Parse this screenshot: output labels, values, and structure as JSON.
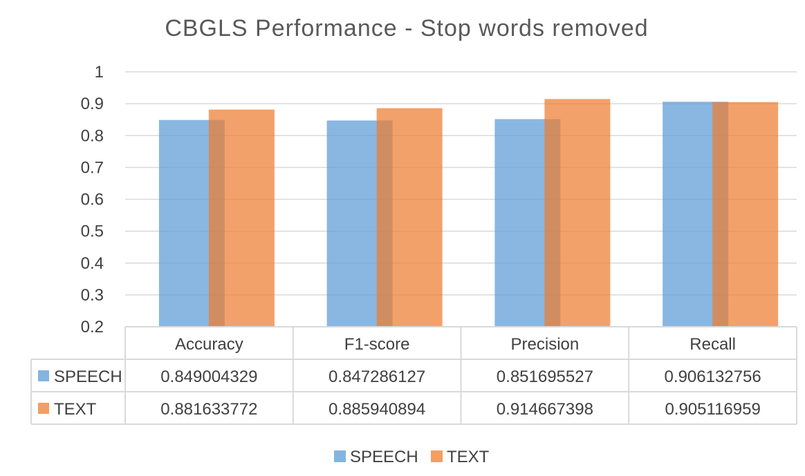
{
  "chart_data": {
    "type": "bar",
    "title": "CBGLS Performance - Stop words removed",
    "categories": [
      "Accuracy",
      "F1-score",
      "Precision",
      "Recall"
    ],
    "series": [
      {
        "name": "SPEECH",
        "color": "#5B9BD5",
        "values": [
          0.849004329,
          0.847286127,
          0.851695527,
          0.906132756
        ],
        "labels": [
          "0.849004329",
          "0.847286127",
          "0.851695527",
          "0.906132756"
        ]
      },
      {
        "name": "TEXT",
        "color": "#ED7D31",
        "values": [
          0.881633772,
          0.885940894,
          0.914667398,
          0.905116959
        ],
        "labels": [
          "0.881633772",
          "0.885940894",
          "0.914667398",
          "0.905116959"
        ]
      }
    ],
    "ylim": [
      0.2,
      1
    ],
    "yticks": [
      "0.2",
      "0.3",
      "0.4",
      "0.5",
      "0.6",
      "0.7",
      "0.8",
      "0.9",
      "1"
    ],
    "grid": true,
    "data_table": true,
    "legend_position": "bottom"
  }
}
